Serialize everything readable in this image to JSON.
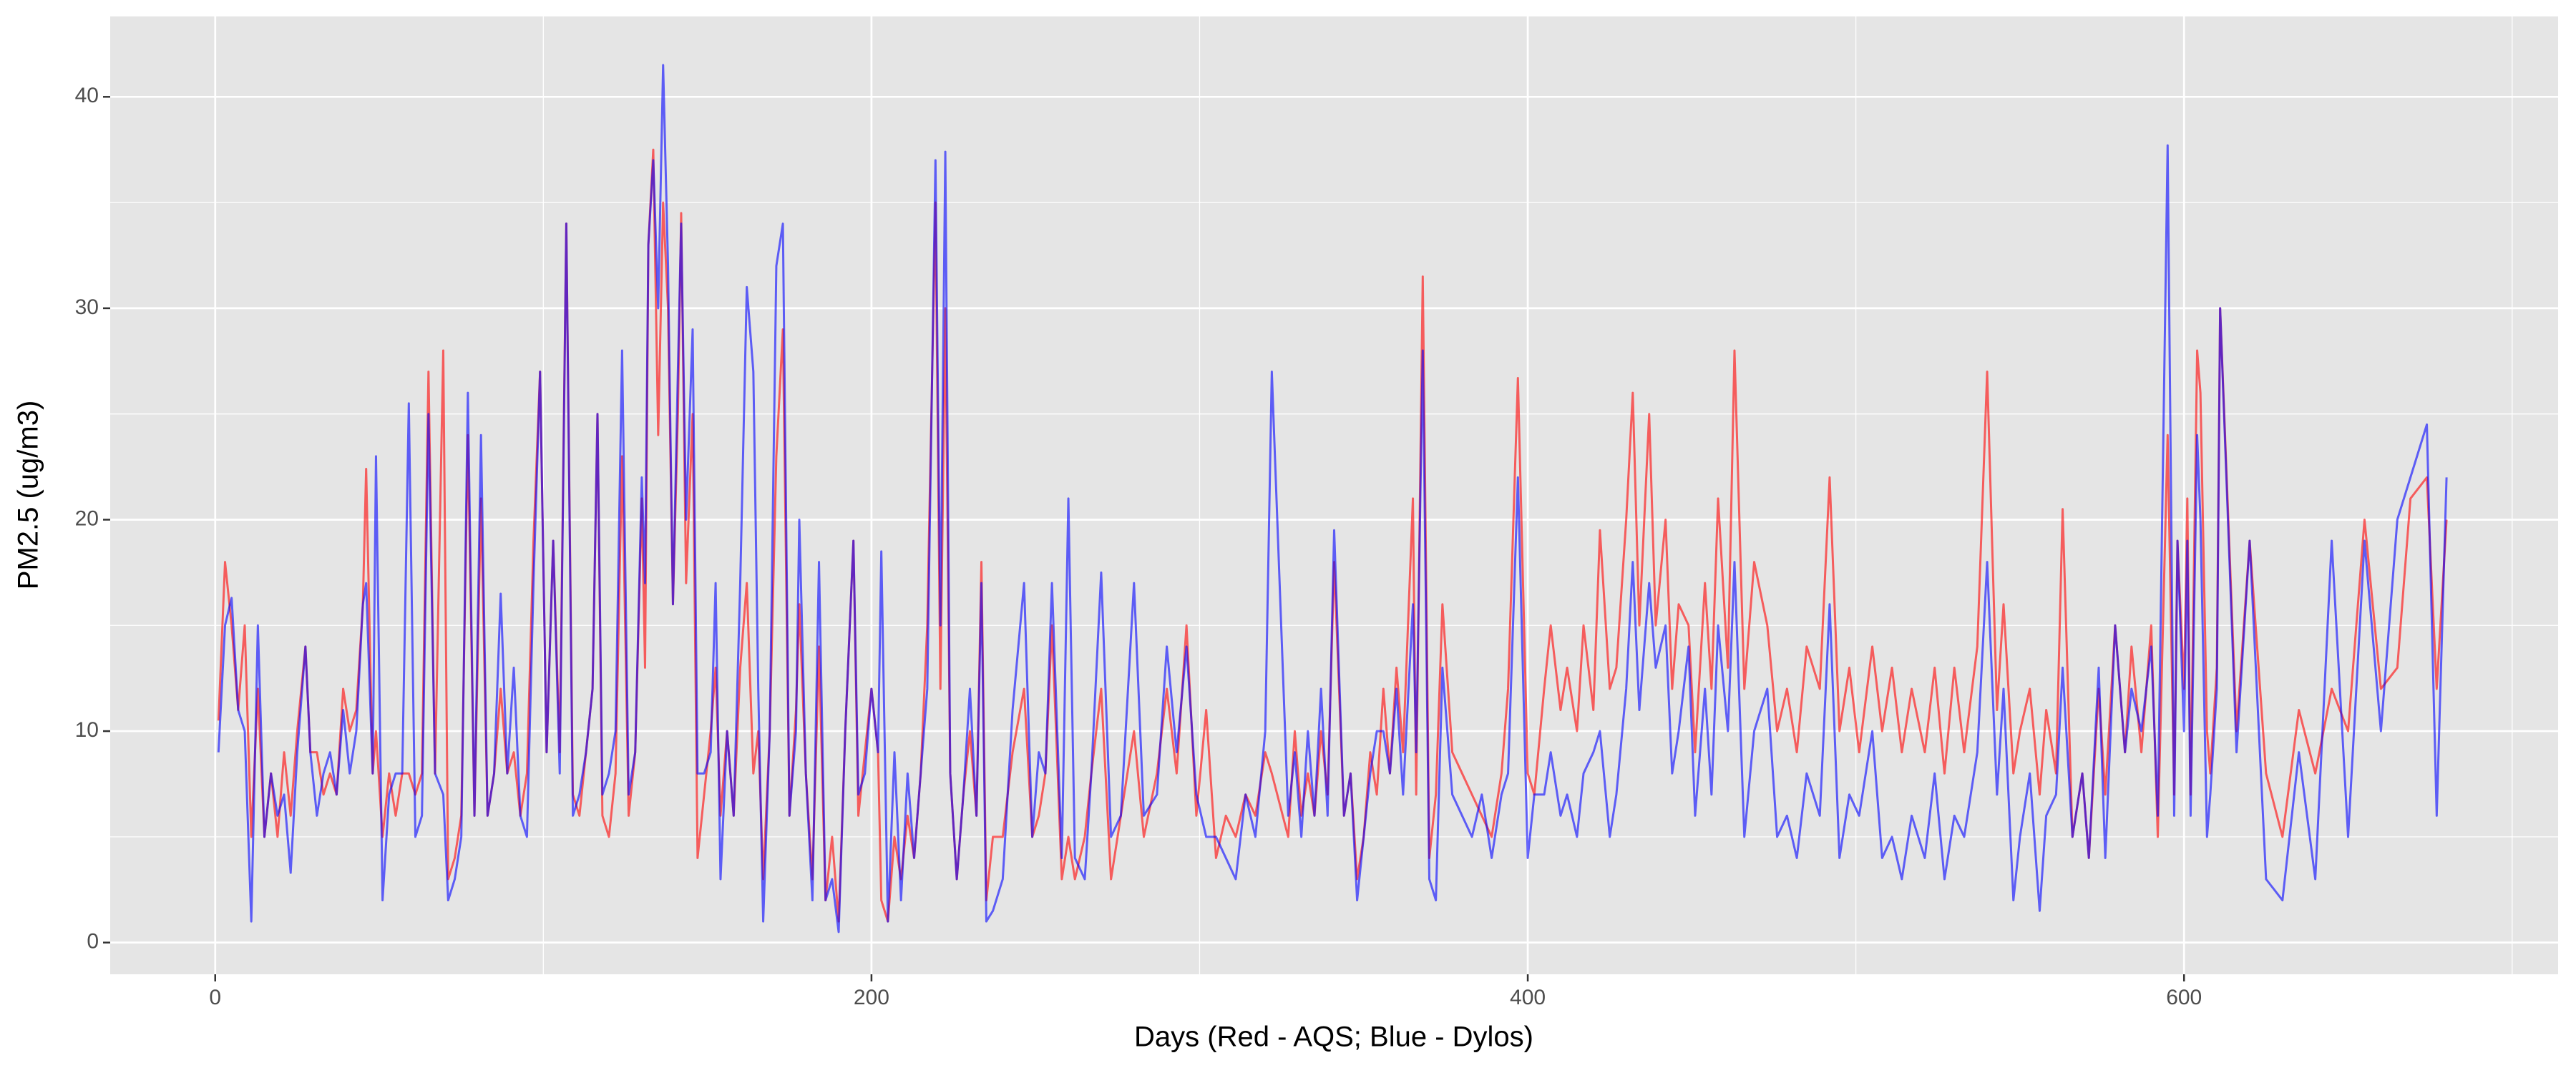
{
  "chart_data": {
    "type": "line",
    "xlabel": "Days (Red - AQS; Blue - Dylos)",
    "ylabel": "PM2.5 (ug/m3)",
    "xlim": [
      -32,
      714
    ],
    "ylim": [
      -1.5,
      43.8
    ],
    "xticks": [
      0,
      200,
      400,
      600
    ],
    "yticks": [
      0,
      10,
      20,
      30,
      40
    ],
    "xminor": [
      100,
      300,
      500,
      700
    ],
    "yminor": [
      5,
      15,
      25,
      35
    ],
    "grid": true,
    "opacity": 0.6,
    "x": [
      1,
      3,
      5,
      7,
      9,
      11,
      13,
      15,
      17,
      19,
      21,
      23,
      25,
      27.5,
      29,
      31,
      33,
      35,
      37,
      39,
      41,
      43,
      45,
      46,
      48,
      49,
      51,
      53,
      55,
      57,
      59,
      61,
      63,
      65,
      67,
      69.5,
      71,
      73,
      75,
      77,
      79,
      81,
      83,
      85,
      87,
      89,
      91,
      93,
      95,
      97,
      99,
      101,
      103,
      105,
      107,
      109,
      111,
      113,
      115,
      116.5,
      118,
      120,
      122,
      124,
      126,
      128,
      130,
      131,
      132,
      133.5,
      135,
      136.5,
      138,
      139.5,
      141,
      142,
      143.5,
      145.5,
      147,
      149,
      151,
      152.5,
      154,
      156,
      158,
      160,
      162,
      164,
      165.5,
      167,
      169,
      171,
      173,
      175,
      177,
      178,
      180,
      182,
      184,
      186,
      188,
      190,
      192,
      194.5,
      196,
      198,
      200,
      202,
      203,
      205,
      207,
      209,
      211,
      213,
      215,
      217,
      219.5,
      221,
      222.5,
      224,
      226,
      228,
      230,
      232,
      233.5,
      235,
      237,
      240,
      243,
      246.5,
      249,
      251,
      253,
      255,
      258,
      260,
      262,
      265,
      267,
      270,
      273,
      276,
      280,
      283,
      287,
      290,
      293,
      296,
      299,
      302,
      305,
      308,
      311,
      314,
      317,
      320,
      322,
      327,
      329,
      331,
      333,
      335,
      337,
      339,
      341,
      344,
      346,
      348,
      350,
      352,
      354,
      356,
      358,
      360,
      362,
      365,
      366,
      368,
      370,
      372,
      374,
      377,
      380,
      383,
      386,
      389,
      392,
      394,
      397,
      400,
      402,
      405,
      407,
      410,
      412,
      415,
      417,
      420,
      422,
      425,
      427,
      430,
      432,
      434,
      437,
      439,
      442,
      444,
      446,
      449,
      451,
      454,
      456,
      458,
      461,
      463,
      466,
      469,
      473,
      476,
      479,
      482,
      485,
      489,
      492,
      495,
      498,
      501,
      505,
      508,
      511,
      514,
      517,
      521,
      524,
      527,
      530,
      533,
      537,
      540,
      543,
      545,
      548,
      550,
      553,
      556,
      558,
      561,
      563,
      566,
      569,
      571,
      574,
      576,
      579,
      582,
      584,
      587,
      590,
      592,
      595,
      597,
      598,
      600,
      601,
      602,
      604,
      605,
      607,
      608,
      610,
      611,
      616,
      620,
      625,
      630,
      635,
      640,
      645,
      650,
      655,
      660,
      665,
      669,
      674,
      677,
      680
    ],
    "series": [
      {
        "color": "#ff0000",
        "values": [
          10.5,
          18,
          15,
          11,
          15,
          5,
          12,
          5,
          8,
          5,
          9,
          6,
          10,
          14,
          9,
          9,
          7,
          8,
          7,
          12,
          10,
          11,
          16,
          22.4,
          8,
          10,
          5,
          8,
          6,
          8,
          8,
          7,
          8,
          27,
          8,
          28,
          3,
          4,
          6,
          24,
          6,
          21,
          6,
          8,
          12,
          8,
          9,
          6,
          8,
          19,
          27,
          9,
          19,
          9,
          34,
          7,
          6,
          9,
          12,
          25,
          6,
          5,
          8,
          23,
          6,
          9,
          21,
          13,
          33,
          37.5,
          24,
          35,
          30,
          16,
          25,
          34.5,
          17,
          25,
          4,
          7,
          10,
          13,
          6,
          10,
          6,
          13,
          17,
          8,
          10,
          3,
          10,
          23,
          29,
          6,
          11,
          16,
          8,
          3,
          14,
          2,
          5,
          1,
          10,
          19,
          6,
          9,
          12,
          9,
          2,
          1,
          5,
          3,
          6,
          4,
          8,
          15,
          35,
          12,
          30,
          8,
          3,
          7,
          10,
          6,
          18,
          2,
          5,
          5,
          9,
          12,
          5,
          6,
          8,
          15,
          3,
          5,
          3,
          5,
          8,
          12,
          3,
          6,
          10,
          5,
          8,
          12,
          8,
          15,
          6,
          11,
          4,
          6,
          5,
          7,
          6,
          9,
          8,
          5,
          10,
          6,
          8,
          6,
          10,
          7,
          18,
          6,
          8,
          3,
          5,
          9,
          7,
          12,
          8,
          13,
          9,
          21,
          7,
          31.5,
          4,
          7,
          16,
          9,
          8,
          7,
          6,
          5,
          8,
          12,
          26.7,
          8,
          7,
          12,
          15,
          11,
          13,
          10,
          15,
          11,
          19.5,
          12,
          13,
          20,
          26,
          15,
          25,
          15,
          20,
          12,
          16,
          15,
          9,
          17,
          12,
          21,
          13,
          28,
          12,
          18,
          15,
          10,
          12,
          9,
          14,
          12,
          22,
          10,
          13,
          9,
          14,
          10,
          13,
          9,
          12,
          9,
          13,
          8,
          13,
          9,
          14,
          27,
          11,
          16,
          8,
          10,
          12,
          7,
          11,
          8,
          20.5,
          5,
          8,
          4,
          12,
          7,
          15,
          9,
          14,
          9,
          15,
          5,
          24,
          7,
          19,
          12,
          21,
          7,
          28,
          26,
          10,
          8,
          13,
          30,
          10,
          19,
          8,
          5,
          11,
          8,
          12,
          10,
          20,
          12,
          13,
          21,
          22,
          12,
          20
        ]
      },
      {
        "color": "#0000ff",
        "values": [
          9,
          15,
          16.3,
          11,
          10,
          1,
          15,
          5,
          8,
          6,
          7,
          3.3,
          9,
          14,
          9,
          6,
          8,
          9,
          7,
          11,
          8,
          10,
          16,
          17,
          8,
          23,
          2,
          7,
          8,
          8,
          25.5,
          5,
          6,
          25,
          8,
          7,
          2,
          3,
          5,
          26,
          6,
          24,
          6,
          8,
          16.5,
          8,
          13,
          6,
          5,
          17,
          27,
          9,
          19,
          8,
          34,
          6,
          7,
          9,
          12,
          25,
          7,
          8,
          10,
          28,
          7,
          9,
          22,
          17,
          33,
          37,
          30,
          41.5,
          32,
          16,
          27,
          34,
          20,
          29,
          8,
          8,
          9,
          17,
          3,
          10,
          6,
          17,
          31,
          27,
          12,
          1,
          10,
          32,
          34,
          6,
          10,
          20,
          8,
          2,
          18,
          2,
          3,
          0.5,
          10,
          19,
          7,
          8,
          12,
          9,
          18.5,
          1,
          9,
          2,
          8,
          4,
          8,
          12,
          37,
          15,
          37.4,
          8,
          3,
          7,
          12,
          6,
          17,
          1,
          1.5,
          3,
          11,
          17,
          5,
          9,
          8,
          17,
          4,
          21,
          4,
          3,
          8,
          17.5,
          5,
          6,
          17,
          6,
          7,
          14,
          9,
          14,
          7,
          5,
          5,
          4,
          3,
          7,
          5,
          10,
          27,
          6,
          9,
          5,
          10,
          6,
          12,
          6,
          19.5,
          6,
          8,
          2,
          5,
          8,
          10,
          10,
          8,
          12,
          7,
          16,
          9,
          28,
          3,
          2,
          13,
          7,
          6,
          5,
          7,
          4,
          7,
          8,
          22,
          4,
          7,
          7,
          9,
          6,
          7,
          5,
          8,
          9,
          10,
          5,
          7,
          12,
          18,
          11,
          17,
          13,
          15,
          8,
          10,
          14,
          6,
          12,
          7,
          15,
          10,
          18,
          5,
          10,
          12,
          5,
          6,
          4,
          8,
          6,
          16,
          4,
          7,
          6,
          10,
          4,
          5,
          3,
          6,
          4,
          8,
          3,
          6,
          5,
          9,
          18,
          7,
          12,
          2,
          5,
          8,
          1.5,
          6,
          7,
          13,
          5,
          8,
          4,
          13,
          4,
          15,
          9,
          12,
          10,
          14,
          6,
          37.7,
          6,
          19,
          10,
          19,
          6,
          24,
          20,
          5,
          7,
          12,
          30,
          9,
          19,
          3,
          2,
          9,
          3,
          19,
          5,
          19,
          10,
          20,
          22,
          24.5,
          6,
          22
        ]
      }
    ]
  }
}
